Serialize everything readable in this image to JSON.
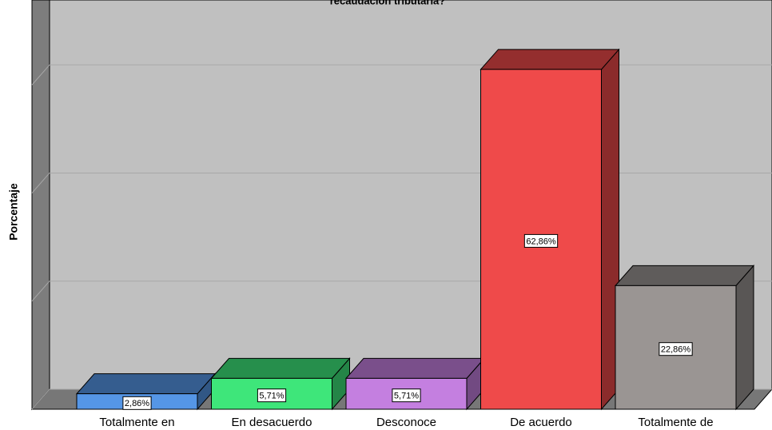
{
  "chart_data": {
    "type": "bar3d",
    "title": "recaudación tributaria?",
    "ylabel": "Porcentaje",
    "categories": [
      "Totalmente en",
      "En desacuerdo",
      "Desconoce",
      "De acuerdo",
      "Totalmente de"
    ],
    "values": [
      2.86,
      5.71,
      5.71,
      62.86,
      22.86
    ],
    "value_labels": [
      "2,86%",
      "5,71%",
      "5,71%",
      "62,86%",
      "22,86%"
    ],
    "colors": [
      "#5596e6",
      "#3ee67a",
      "#c47fe0",
      "#ef4a4a",
      "#9a9593"
    ],
    "ylim": [
      0,
      72
    ],
    "yticks": [
      0,
      20,
      40,
      60
    ],
    "grid": true
  }
}
